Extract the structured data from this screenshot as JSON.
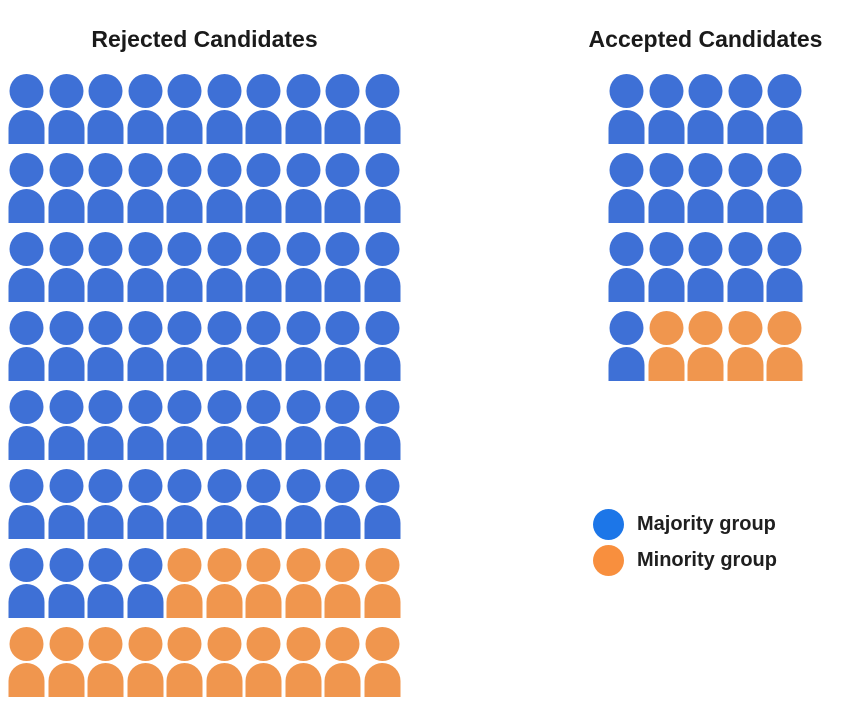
{
  "page": {
    "background": "#ffffff"
  },
  "colors": {
    "icon_majority": "#3E70D6",
    "icon_minority": "#F0964E",
    "title_text": "#1A1A1A"
  },
  "chart_data": [
    {
      "type": "pictogram",
      "title": "Rejected Candidates",
      "rows": 8,
      "cols": 10,
      "total": 80,
      "series": [
        {
          "name": "Majority group",
          "value": 64
        },
        {
          "name": "Minority group",
          "value": 16
        }
      ],
      "grid": [
        "BBBBBBBBBB",
        "BBBBBBBBBB",
        "BBBBBBBBBB",
        "BBBBBBBBBB",
        "BBBBBBBBBB",
        "BBBBBBBBBB",
        "BBBBOOOOOO",
        "OOOOOOOOOO"
      ]
    },
    {
      "type": "pictogram",
      "title": "Accepted Candidates",
      "rows": 4,
      "cols": 5,
      "total": 20,
      "series": [
        {
          "name": "Majority group",
          "value": 16
        },
        {
          "name": "Minority group",
          "value": 4
        }
      ],
      "grid": [
        "BBBBB",
        "BBBBB",
        "BBBBB",
        "BOOOO"
      ]
    }
  ],
  "legend": {
    "position": "right-middle",
    "items": [
      {
        "label": "Majority group",
        "key": "majority",
        "color": "#1C76E8"
      },
      {
        "label": "Minority group",
        "key": "minority",
        "color": "#F88F3E"
      }
    ]
  }
}
